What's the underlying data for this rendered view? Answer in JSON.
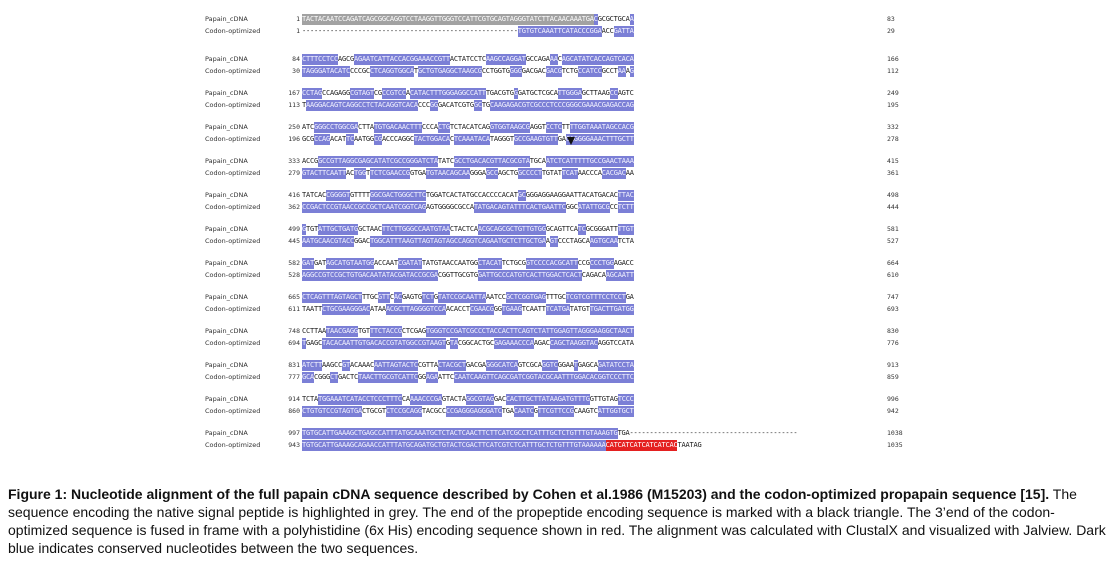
{
  "alignment": {
    "rows": [
      {
        "names": [
          "Papain_cDNA",
          "Codon-optimized"
        ],
        "starts": [
          "1",
          "1"
        ],
        "ends": [
          "83",
          "29"
        ]
      },
      {
        "names": [
          "Papain_cDNA",
          "Codon-optimized"
        ],
        "starts": [
          "84",
          "30"
        ],
        "ends": [
          "166",
          "112"
        ]
      },
      {
        "names": [
          "Papain_cDNA",
          "Codon-optimized"
        ],
        "starts": [
          "167",
          "113"
        ],
        "ends": [
          "249",
          "195"
        ]
      },
      {
        "names": [
          "Papain_cDNA",
          "Codon-optimized"
        ],
        "starts": [
          "250",
          "196"
        ],
        "ends": [
          "332",
          "278"
        ]
      },
      {
        "names": [
          "Papain_cDNA",
          "Codon-optimized"
        ],
        "starts": [
          "333",
          "279"
        ],
        "ends": [
          "415",
          "361"
        ]
      },
      {
        "names": [
          "Papain_cDNA",
          "Codon-optimized"
        ],
        "starts": [
          "416",
          "362"
        ],
        "ends": [
          "498",
          "444"
        ]
      },
      {
        "names": [
          "Papain_cDNA",
          "Codon-optimized"
        ],
        "starts": [
          "499",
          "445"
        ],
        "ends": [
          "581",
          "527"
        ]
      },
      {
        "names": [
          "Papain_cDNA",
          "Codon-optimized"
        ],
        "starts": [
          "582",
          "528"
        ],
        "ends": [
          "664",
          "610"
        ]
      },
      {
        "names": [
          "Papain_cDNA",
          "Codon-optimized"
        ],
        "starts": [
          "665",
          "611"
        ],
        "ends": [
          "747",
          "693"
        ]
      },
      {
        "names": [
          "Papain_cDNA",
          "Codon-optimized"
        ],
        "starts": [
          "748",
          "694"
        ],
        "ends": [
          "830",
          "776"
        ]
      },
      {
        "names": [
          "Papain_cDNA",
          "Codon-optimized"
        ],
        "starts": [
          "831",
          "777"
        ],
        "ends": [
          "913",
          "859"
        ]
      },
      {
        "names": [
          "Papain_cDNA",
          "Codon-optimized"
        ],
        "starts": [
          "914",
          "860"
        ],
        "ends": [
          "996",
          "942"
        ]
      },
      {
        "names": [
          "Papain_cDNA",
          "Codon-optimized"
        ],
        "starts": [
          "997",
          "943"
        ],
        "ends": [
          "1038",
          "1035"
        ]
      }
    ],
    "last_row_segments": {
      "cdna": [
        {
          "t": "TGTGCATTGAAAGCTGAGCCATTTATGCAAATGCTCTACTCAACTTCTTCATCGCCTCATTTGCTCTGTTTGTAAAGTG",
          "c": "c"
        },
        {
          "t": "TGA",
          "c": ""
        },
        {
          "t": "------------------------------------------",
          "c": ""
        }
      ],
      "opt": [
        {
          "t": "TGTGCATTGAAAGCAGAACCATTTATGCAGATGCTGTACTCGACTTCATCGTCTCATTTGCTCTGTTTGTAAAAAA",
          "c": "c"
        },
        {
          "t": "CATCATCATCATCATCAC",
          "c": "r"
        },
        {
          "t": "TAATAG",
          "c": ""
        }
      ]
    }
  },
  "caption": {
    "title": "Figure 1: Nucleotide alignment of the full papain cDNA sequence described by Cohen et al.1986 (M15203) and the codon-optimized propapain sequence",
    "ref": "[15].",
    "body": "The sequence encoding the native signal peptide is highlighted in grey. The end of the propeptide encoding sequence is marked with a black triangle. The 3’end of the codon-optimized sequence is fused in frame with a polyhistidine (6x His) encoding sequence shown in red. The alignment was calculated with ClustalX and visualized with Jalview. Dark blue indicates conserved nucleotides between the two sequences."
  },
  "colors": {
    "conserved": "#7b7fd6",
    "signal_peptide": "#a2a2a2",
    "his_tag": "#e42020"
  }
}
